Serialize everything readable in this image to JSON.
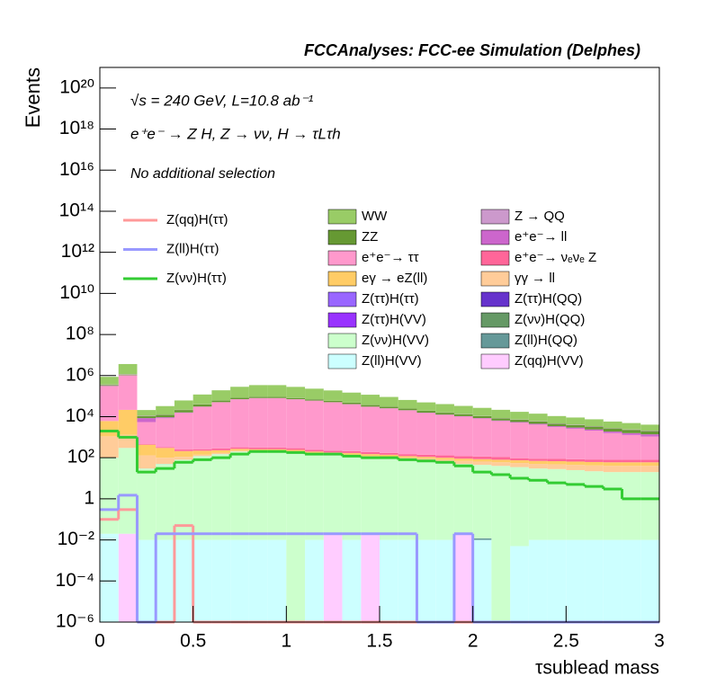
{
  "chart_data": {
    "type": "histogram",
    "stacked": true,
    "log_y": true,
    "title": "FCCAnalyses: FCC-ee Simulation (Delphes)",
    "annotations": [
      "√s = 240 GeV, L=10.8 ab⁻¹",
      "e⁺e⁻ → Z H, Z → νν, H → τLτh",
      "No additional selection"
    ],
    "xlabel": "τsublead mass",
    "ylabel": "Events",
    "bins": [
      0,
      0.1,
      0.2,
      0.3,
      0.4,
      0.5,
      0.6,
      0.7,
      0.8,
      0.9,
      1,
      1.1,
      1.2,
      1.3,
      1.4,
      1.5,
      1.6,
      1.7,
      1.8,
      1.9,
      2,
      2.1,
      2.2,
      2.3,
      2.4,
      2.5,
      2.6,
      2.7,
      2.8,
      2.9,
      3
    ],
    "xlim": [
      0,
      3
    ],
    "xticks": [
      0,
      0.5,
      1,
      1.5,
      2,
      2.5,
      3
    ],
    "ylim": [
      1e-06,
      1e+21
    ],
    "yticks": [
      {
        "value": 1e-06,
        "label": "10⁻⁶"
      },
      {
        "value": 0.0001,
        "label": "10⁻⁴"
      },
      {
        "value": 0.01,
        "label": "10⁻²"
      },
      1,
      {
        "value": 100,
        "label": "10²"
      },
      {
        "value": 10000.0,
        "label": "10⁴"
      },
      {
        "value": 1000000.0,
        "label": "10⁶"
      },
      {
        "value": 100000000.0,
        "label": "10⁸"
      },
      {
        "value": 10000000000.0,
        "label": "10¹⁰"
      },
      {
        "value": 1000000000000.0,
        "label": "10¹²"
      },
      {
        "value": 100000000000000.0,
        "label": "10¹⁴"
      },
      {
        "value": 1e+16,
        "label": "10¹⁶"
      },
      {
        "value": 1e+18,
        "label": "10¹⁸"
      },
      {
        "value": 1e+20,
        "label": "10²⁰"
      }
    ],
    "series": [
      {
        "name": "Z(qq)H(ττ)",
        "histtype": "step",
        "color": "#ff9999",
        "values": [
          0.1,
          0.3,
          0,
          0,
          0.05,
          0,
          0,
          0,
          0,
          0,
          0,
          0,
          0,
          0,
          0,
          0,
          0,
          0,
          0,
          0,
          0,
          0,
          0,
          0,
          0,
          0,
          0,
          0,
          0,
          0
        ]
      },
      {
        "name": "Z(ll)H(ττ)",
        "histtype": "step",
        "color": "#9999ff",
        "values": [
          0.3,
          1.5,
          0,
          0.02,
          0.02,
          0.02,
          0.02,
          0.02,
          0.02,
          0.02,
          0.02,
          0.02,
          0.02,
          0.02,
          0.02,
          0.02,
          0.02,
          0,
          0,
          0.02,
          0,
          0,
          0,
          0,
          0,
          0,
          0,
          0,
          0,
          0
        ]
      },
      {
        "name": "Z(νν)H(ττ)",
        "histtype": "step",
        "color": "#33cc33",
        "values": [
          2000,
          1000,
          20,
          30,
          60,
          80,
          100,
          150,
          200,
          200,
          180,
          150,
          150,
          120,
          100,
          100,
          80,
          70,
          60,
          40,
          20,
          15,
          10,
          8,
          6,
          5,
          4,
          3,
          1,
          1
        ]
      },
      {
        "name": "WW",
        "color": "#99cc66",
        "values": [
          500000.0,
          2500000.0,
          10000.0,
          20000.0,
          40000.0,
          80000.0,
          130000.0,
          200000.0,
          250000.0,
          250000.0,
          200000.0,
          160000.0,
          130000.0,
          100000.0,
          80000.0,
          60000.0,
          40000.0,
          30000.0,
          25000.0,
          20000.0,
          16000.0,
          13000.0,
          10000.0,
          8000,
          6000,
          5000,
          4000,
          3000,
          2500,
          2000
        ]
      },
      {
        "name": "Z → QQ",
        "color": "#cc99cc",
        "values": [
          20000.0,
          50000.0,
          500,
          300,
          500,
          800,
          1000,
          1000,
          900,
          800,
          700,
          600,
          500,
          500,
          400,
          400,
          300,
          300,
          300,
          250,
          250,
          200,
          200,
          200,
          150,
          150,
          150,
          100,
          100,
          100
        ]
      },
      {
        "name": "ZZ",
        "color": "#669933",
        "values": [
          30000.0,
          50000.0,
          2000,
          3000,
          5000,
          8000,
          10000,
          12000,
          12000,
          11000,
          10000,
          9000,
          8000,
          7000,
          6000,
          5000,
          4000,
          3500,
          3000,
          2500,
          2000,
          1800,
          1500,
          1300,
          1100,
          1000,
          900,
          800,
          700,
          600
        ]
      },
      {
        "name": "e⁺e⁻→ ll",
        "color": "#cc66cc",
        "values": [
          10000.0,
          20000.0,
          3000,
          1000,
          800,
          700,
          600,
          600,
          500,
          500,
          500,
          500,
          500,
          500,
          500,
          500,
          500,
          500,
          450,
          450,
          400,
          400,
          400,
          400,
          350,
          350,
          300,
          300,
          300,
          300
        ]
      },
      {
        "name": "e⁺e⁻→ ττ",
        "color": "#ff99cc",
        "values": [
          300000.0,
          1000000.0,
          5000,
          8000,
          15000,
          30000,
          50000,
          70000,
          80000,
          80000,
          70000,
          60000,
          50000,
          40000,
          30000,
          25000,
          20000,
          15000,
          12000,
          10000,
          8000,
          6000,
          5000,
          4000,
          3000,
          2500,
          2000,
          1500,
          1200,
          1000
        ]
      },
      {
        "name": "e⁺e⁻→ νₑνₑ Z",
        "color": "#ff6699",
        "values": [
          50,
          50,
          30,
          30,
          40,
          40,
          50,
          50,
          50,
          50,
          50,
          40,
          40,
          40,
          40,
          30,
          30,
          30,
          30,
          30,
          30,
          30,
          20,
          20,
          20,
          20,
          20,
          20,
          20,
          20
        ]
      },
      {
        "name": "eγ → eZ(ll)",
        "color": "#ffcc66",
        "values": [
          5000,
          20000,
          300,
          200,
          100,
          80,
          60,
          50,
          40,
          40,
          40,
          30,
          30,
          30,
          30,
          30,
          20,
          20,
          20,
          20,
          20,
          20,
          20,
          20,
          20,
          20,
          20,
          20,
          20,
          20
        ]
      },
      {
        "name": "γγ → ll",
        "color": "#ffcc99",
        "values": [
          1000,
          1000,
          100,
          50,
          30,
          20,
          20,
          20,
          20,
          20,
          20,
          20,
          20,
          20,
          20,
          20,
          20,
          20,
          20,
          20,
          20,
          20,
          20,
          20,
          20,
          20,
          20,
          20,
          20,
          20
        ]
      },
      {
        "name": "Z(ττ)H(ττ)",
        "color": "#9966ff",
        "values": [
          0.3,
          0.5,
          0.05,
          0.1,
          0.2,
          0.3,
          0.3,
          0.3,
          0.3,
          0.2,
          0.2,
          0.2,
          0.1,
          0.1,
          0.1,
          0.1,
          0.05,
          0.05,
          0.05,
          0.05,
          0.03,
          0.03,
          0.02,
          0.02,
          0.02,
          0,
          0,
          0,
          0,
          0
        ]
      },
      {
        "name": "Z(ττ)H(QQ)",
        "color": "#6633cc",
        "values": [
          0,
          0,
          0,
          0,
          0,
          0,
          0,
          0,
          0,
          1e-05,
          0,
          0,
          0,
          0,
          0,
          0,
          0,
          0,
          0,
          0,
          0,
          0,
          0,
          0,
          0,
          0,
          0,
          0,
          0,
          0
        ]
      },
      {
        "name": "Z(ττ)H(VV)",
        "color": "#9933ff",
        "values": [
          0.5,
          1,
          0.1,
          0.2,
          0.4,
          0.5,
          0.6,
          0.6,
          0.5,
          0.5,
          0.4,
          0.3,
          0.3,
          0.2,
          0.2,
          0.15,
          0.1,
          0.1,
          0.08,
          0.06,
          0.05,
          0.04,
          0.03,
          0.03,
          0.02,
          0.02,
          0.02,
          0.01,
          0.01,
          0.01
        ]
      },
      {
        "name": "Z(νν)H(QQ)",
        "color": "#669966",
        "values": [
          0.005,
          0,
          0,
          0,
          0,
          0,
          0,
          0,
          0,
          0,
          0.02,
          0,
          0,
          0,
          0,
          0,
          0,
          0,
          0,
          0,
          0,
          0.01,
          0,
          0,
          0,
          0,
          0,
          0,
          0,
          0
        ]
      },
      {
        "name": "Z(νν)H(VV)",
        "color": "#ccffcc",
        "values": [
          100,
          300,
          30,
          50,
          80,
          120,
          150,
          200,
          200,
          200,
          180,
          150,
          130,
          120,
          100,
          90,
          80,
          70,
          60,
          50,
          45,
          40,
          35,
          30,
          28,
          25,
          22,
          20,
          20,
          20
        ]
      },
      {
        "name": "Z(ll)H(QQ)",
        "color": "#669999",
        "values": [
          0,
          0,
          0,
          0,
          0,
          0,
          0,
          0,
          0,
          0,
          0,
          0,
          0,
          0,
          0,
          0,
          0,
          0,
          0,
          0,
          0.002,
          0,
          0,
          0,
          0,
          0,
          0,
          0,
          0,
          0
        ]
      },
      {
        "name": "Z(ll)H(VV)",
        "color": "#ccffff",
        "values": [
          0.02,
          0,
          0.01,
          0.01,
          0.01,
          0.01,
          0.01,
          0.01,
          0.01,
          0.01,
          0,
          0.01,
          0,
          0.01,
          0,
          0.01,
          0.01,
          0.01,
          0.01,
          0,
          0.01,
          0,
          0.005,
          0.01,
          0.01,
          0.01,
          0.01,
          0.01,
          0.01,
          0.01
        ]
      },
      {
        "name": "Z(qq)H(VV)",
        "color": "#ffccff",
        "values": [
          0,
          0.02,
          0,
          0,
          0,
          0,
          0,
          0,
          0,
          0,
          0,
          0,
          0.02,
          0,
          0.02,
          0,
          0,
          0,
          0,
          0.02,
          0,
          0,
          0,
          0,
          0,
          0,
          0,
          0,
          0,
          0
        ]
      }
    ]
  }
}
